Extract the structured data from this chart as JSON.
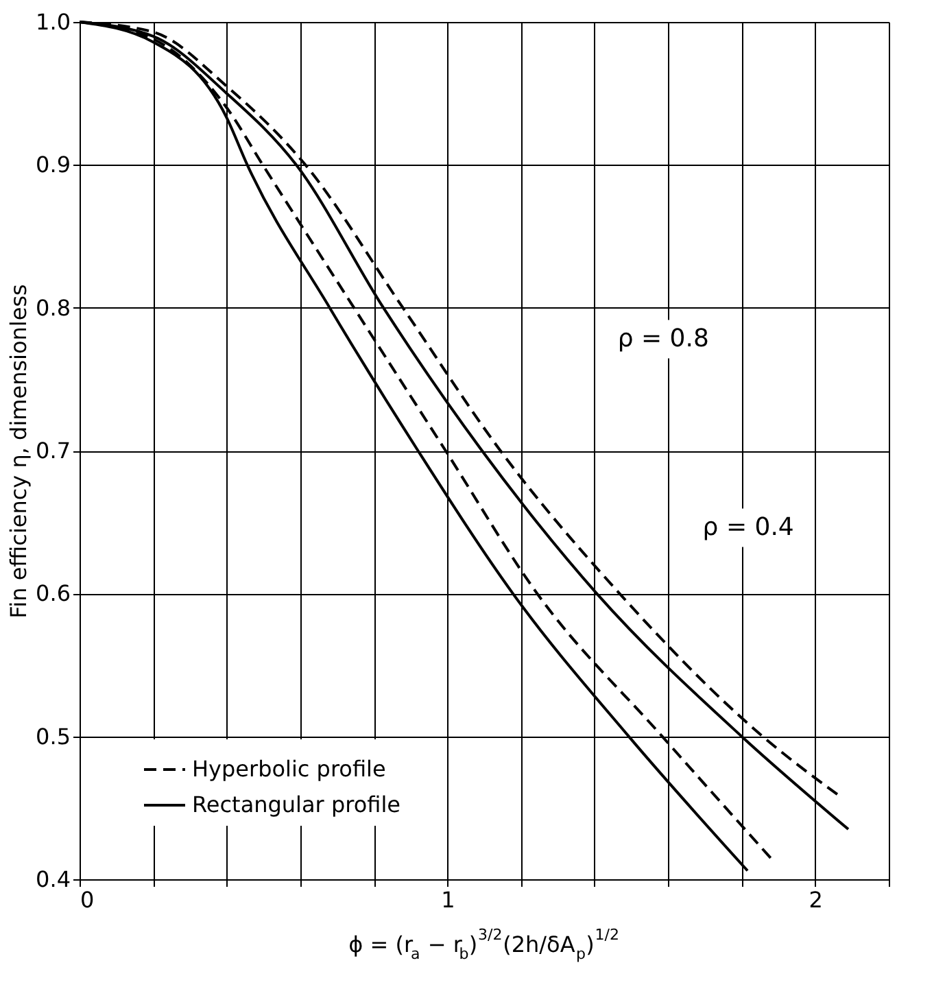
{
  "chart_data": {
    "type": "line",
    "xlabel": "ϕ = (r$_{a}$ − r$_{b}$)$^{3/2}$(2h/δA$_{p}$)$^{1/2}$",
    "ylabel": "Fin efficiency η, dimensionless",
    "xlim": [
      0,
      2.2
    ],
    "ylim": [
      0.4,
      1.0
    ],
    "xticks": [
      0,
      {
        "value": 0.2,
        "label": null
      },
      {
        "value": 0.4,
        "label": null
      },
      {
        "value": 0.6,
        "label": null
      },
      {
        "value": 0.8,
        "label": null
      },
      1,
      {
        "value": 1.2,
        "label": null
      },
      {
        "value": 1.4,
        "label": null
      },
      {
        "value": 1.6,
        "label": null
      },
      {
        "value": 1.8,
        "label": null
      },
      2,
      {
        "value": 2.2,
        "label": null
      }
    ],
    "yticks": [
      {
        "value": 0.4,
        "label": "0.4"
      },
      {
        "value": 0.5,
        "label": "0.5"
      },
      {
        "value": 0.6,
        "label": "0.6"
      },
      {
        "value": 0.7,
        "label": "0.7"
      },
      {
        "value": 0.8,
        "label": "0.8"
      },
      {
        "value": 0.9,
        "label": "0.9"
      },
      {
        "value": 1.0,
        "label": "1.0"
      }
    ],
    "grid": true,
    "legend": "bottom left",
    "marker": "none",
    "annotations": [
      "ρ = 0.8",
      "ρ = 0.4"
    ],
    "series": [
      {
        "name": "Hyperbolic profile",
        "color": "#000000",
        "line_style": "dashed",
        "x": [
          0,
          0.2,
          0.4,
          0.614,
          0.879,
          1.144,
          1.468,
          1.857,
          2.073
        ],
        "values": [
          1.0,
          0.993,
          0.955,
          0.9,
          0.8,
          0.7,
          0.6,
          0.5,
          0.457
        ]
      },
      {
        "name": "Rectangular profile",
        "color": "#000000",
        "line_style": "solid",
        "x": [
          0,
          0.2,
          0.4,
          0.589,
          0.826,
          1.094,
          1.406,
          1.8,
          2.09
        ],
        "values": [
          1.0,
          0.99,
          0.95,
          0.9,
          0.8,
          0.7,
          0.6,
          0.5,
          0.435
        ]
      },
      {
        "color": "#000000",
        "line_style": "dashed",
        "x": [
          0,
          0.2,
          0.4,
          0.498,
          0.746,
          0.995,
          1.244,
          1.584,
          1.882
        ],
        "values": [
          1.0,
          0.988,
          0.94,
          0.9,
          0.8,
          0.7,
          0.6,
          0.5,
          0.414
        ]
      },
      {
        "color": "#000000",
        "line_style": "solid",
        "x": [
          0,
          0.2,
          0.4,
          0.456,
          0.68,
          0.92,
          1.178,
          1.493,
          1.816
        ],
        "values": [
          1.0,
          0.986,
          0.933,
          0.9,
          0.8,
          0.7,
          0.6,
          0.5,
          0.406
        ]
      }
    ]
  }
}
